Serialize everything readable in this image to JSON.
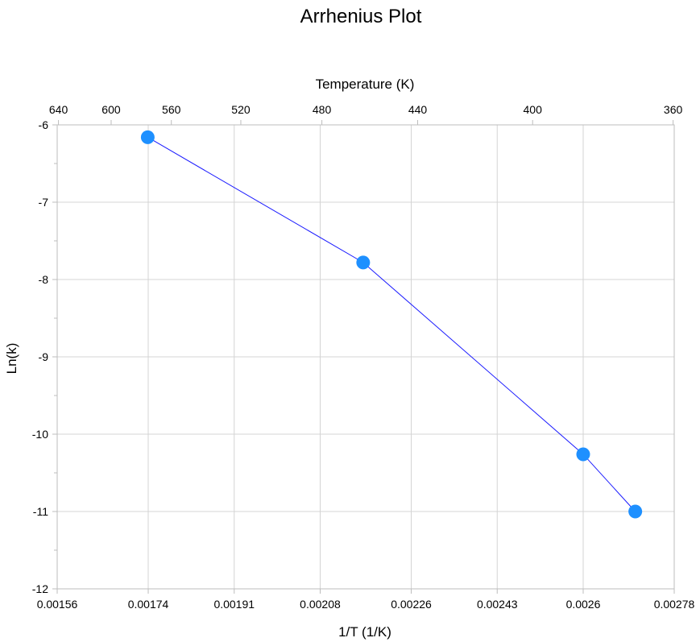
{
  "chart_data": {
    "type": "scatter",
    "title": "Arrhenius Plot",
    "xlabel": "1/T (1/K)",
    "ylabel": "Ln(k)",
    "x2label": "Temperature (K)",
    "xlim": [
      0.00156,
      0.00278
    ],
    "ylim": [
      -12,
      -6
    ],
    "x_ticks": [
      0.00156,
      0.00174,
      0.00191,
      0.00208,
      0.00226,
      0.00243,
      0.0026,
      0.00278
    ],
    "x_tick_labels": [
      "0.00156",
      "0.00174",
      "0.00191",
      "0.00208",
      "0.00226",
      "0.00243",
      "0.0026",
      "0.00278"
    ],
    "x2_ticks": [
      640,
      600,
      560,
      520,
      480,
      440,
      400,
      360
    ],
    "y_ticks": [
      -12,
      -11,
      -10,
      -9,
      -8,
      -7,
      -6
    ],
    "grid": true,
    "series": [
      {
        "line_color": "#1a1aff",
        "marker_color": "#1e90ff",
        "x": [
          0.001739,
          0.002165,
          0.0026,
          0.002703
        ],
        "y": [
          -6.16,
          -7.78,
          -10.26,
          -11.0
        ]
      }
    ]
  }
}
